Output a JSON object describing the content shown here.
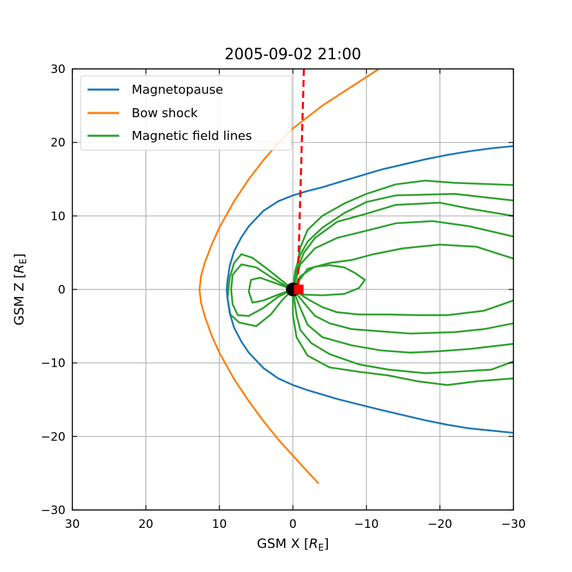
{
  "chart_data": {
    "type": "line",
    "title": "2005-09-02 21:00",
    "xlabel": "GSM X [R_E]",
    "ylabel": "GSM Z [R_E]",
    "xlim": [
      30,
      -30
    ],
    "ylim": [
      -30,
      30
    ],
    "x_ticks": [
      30,
      20,
      10,
      0,
      -10,
      -20,
      -30
    ],
    "y_ticks": [
      -30,
      -20,
      -10,
      0,
      10,
      20,
      30
    ],
    "x_tick_labels": [
      "30",
      "20",
      "10",
      "0",
      "−10",
      "−20",
      "−30"
    ],
    "y_tick_labels": [
      "−30",
      "−20",
      "−10",
      "0",
      "10",
      "20",
      "30"
    ],
    "grid": true,
    "legend_position": "top-left",
    "colors": {
      "magnetopause": "#1f77b4",
      "bow_shock": "#ff7f0e",
      "field_lines": "#2ca02c",
      "spacecraft": "#ff0000",
      "earth": "#000000"
    },
    "series": [
      {
        "name": "Magnetopause",
        "color": "#1f77b4",
        "points": [
          [
            -30,
            19.5
          ],
          [
            -27,
            19.2
          ],
          [
            -24,
            18.8
          ],
          [
            -21,
            18.3
          ],
          [
            -18,
            17.7
          ],
          [
            -15,
            17.0
          ],
          [
            -12,
            16.3
          ],
          [
            -10,
            15.7
          ],
          [
            -8,
            15.1
          ],
          [
            -6,
            14.5
          ],
          [
            -4,
            13.9
          ],
          [
            -2,
            13.4
          ],
          [
            0,
            12.8
          ],
          [
            2,
            12.0
          ],
          [
            4,
            10.7
          ],
          [
            6,
            8.6
          ],
          [
            7,
            7.1
          ],
          [
            8,
            5.2
          ],
          [
            8.6,
            3.2
          ],
          [
            8.9,
            1.2
          ],
          [
            9.0,
            0
          ],
          [
            8.9,
            -1.2
          ],
          [
            8.6,
            -3.2
          ],
          [
            8,
            -5.2
          ],
          [
            7,
            -7.1
          ],
          [
            6,
            -8.6
          ],
          [
            4,
            -10.7
          ],
          [
            2,
            -12.1
          ],
          [
            0,
            -13.0
          ],
          [
            -2,
            -13.7
          ],
          [
            -4,
            -14.3
          ],
          [
            -6,
            -14.9
          ],
          [
            -8,
            -15.4
          ],
          [
            -10,
            -15.9
          ],
          [
            -12,
            -16.4
          ],
          [
            -15,
            -17.1
          ],
          [
            -18,
            -17.8
          ],
          [
            -21,
            -18.4
          ],
          [
            -24,
            -18.9
          ],
          [
            -27,
            -19.2
          ],
          [
            -30,
            -19.5
          ]
        ]
      },
      {
        "name": "Bow shock",
        "color": "#ff7f0e",
        "points": [
          [
            -11.7,
            30
          ],
          [
            -8,
            27.6
          ],
          [
            -4,
            25.0
          ],
          [
            0,
            21.9
          ],
          [
            2,
            19.9
          ],
          [
            4,
            17.6
          ],
          [
            6,
            15.0
          ],
          [
            8,
            12.0
          ],
          [
            10,
            8.4
          ],
          [
            11,
            6.2
          ],
          [
            12,
            3.6
          ],
          [
            12.5,
            1.8
          ],
          [
            12.7,
            0
          ],
          [
            12.5,
            -1.8
          ],
          [
            12,
            -3.6
          ],
          [
            11,
            -6.4
          ],
          [
            10,
            -8.6
          ],
          [
            8,
            -12.2
          ],
          [
            6,
            -15.2
          ],
          [
            4,
            -17.9
          ],
          [
            2,
            -20.4
          ],
          [
            0,
            -22.6
          ],
          [
            -2,
            -24.8
          ],
          [
            -3.5,
            -26.4
          ]
        ]
      },
      {
        "name": "Magnetic field lines",
        "color": "#2ca02c",
        "lines": [
          [
            [
              -30,
              14.2
            ],
            [
              -22,
              14.5
            ],
            [
              -18,
              14.8
            ],
            [
              -14,
              14.3
            ],
            [
              -10,
              13.0
            ],
            [
              -7,
              11.7
            ],
            [
              -4,
              10.0
            ],
            [
              -2,
              8.1
            ],
            [
              -1,
              5.7
            ],
            [
              -0.5,
              2.8
            ],
            [
              0,
              0
            ]
          ],
          [
            [
              -30,
              12.1
            ],
            [
              -22,
              13.0
            ],
            [
              -18,
              12.9
            ],
            [
              -14,
              12.8
            ],
            [
              -10,
              11.9
            ],
            [
              -7,
              10.4
            ],
            [
              -4,
              8.4
            ],
            [
              -2,
              6.5
            ],
            [
              -1,
              4.7
            ],
            [
              -0.3,
              2.5
            ],
            [
              0,
              0
            ]
          ],
          [
            [
              -30,
              10.0
            ],
            [
              -24,
              11.0
            ],
            [
              -20,
              11.8
            ],
            [
              -14,
              11.5
            ],
            [
              -10,
              10.3
            ],
            [
              -6,
              9.2
            ],
            [
              -3,
              7.0
            ],
            [
              -1.5,
              5.0
            ],
            [
              -0.5,
              2.5
            ],
            [
              0,
              0
            ]
          ],
          [
            [
              -30,
              7.2
            ],
            [
              -24,
              8.6
            ],
            [
              -19,
              9.3
            ],
            [
              -14,
              9.0
            ],
            [
              -10,
              8.0
            ],
            [
              -6,
              7.0
            ],
            [
              -3,
              5.6
            ],
            [
              -1,
              3.4
            ],
            [
              0,
              0
            ]
          ],
          [
            [
              -30,
              4.2
            ],
            [
              -25,
              5.8
            ],
            [
              -20,
              6.1
            ],
            [
              -15,
              5.6
            ],
            [
              -11,
              4.8
            ],
            [
              -8,
              4.0
            ],
            [
              -5,
              3.6
            ],
            [
              -2,
              2.8
            ],
            [
              0,
              0
            ]
          ],
          [
            [
              0,
              0
            ],
            [
              -1,
              1.8
            ],
            [
              -3,
              3.1
            ],
            [
              -5,
              3.3
            ],
            [
              -7,
              3.0
            ],
            [
              -8.5,
              2.2
            ],
            [
              -9.8,
              1.3
            ],
            [
              -9,
              0.2
            ],
            [
              -7,
              -0.6
            ],
            [
              -4,
              -0.8
            ],
            [
              -1.5,
              -0.7
            ],
            [
              0,
              0
            ]
          ],
          [
            [
              0,
              0
            ],
            [
              -2,
              -1.3
            ],
            [
              -4,
              -2.4
            ],
            [
              -6,
              -3.1
            ],
            [
              -9,
              -3.4
            ],
            [
              -13,
              -3.4
            ],
            [
              -17,
              -3.5
            ],
            [
              -21,
              -3.5
            ],
            [
              -26,
              -2.9
            ],
            [
              -30,
              -1.5
            ]
          ],
          [
            [
              0,
              0
            ],
            [
              -1.5,
              -1.8
            ],
            [
              -3,
              -3.6
            ],
            [
              -5,
              -4.6
            ],
            [
              -8,
              -5.4
            ],
            [
              -12,
              -5.7
            ],
            [
              -16,
              -6.0
            ],
            [
              -22,
              -5.8
            ],
            [
              -26,
              -5.4
            ],
            [
              -30,
              -4.6
            ]
          ],
          [
            [
              0,
              0
            ],
            [
              -1,
              -2.5
            ],
            [
              -2,
              -4.8
            ],
            [
              -4,
              -6.5
            ],
            [
              -8,
              -7.6
            ],
            [
              -12,
              -8.3
            ],
            [
              -16,
              -8.6
            ],
            [
              -20,
              -8.4
            ],
            [
              -24,
              -8.1
            ],
            [
              -30,
              -7.4
            ]
          ],
          [
            [
              0,
              0
            ],
            [
              -0.5,
              -3.5
            ],
            [
              -1,
              -5.5
            ],
            [
              -2.5,
              -7.3
            ],
            [
              -5,
              -8.8
            ],
            [
              -9,
              -10.2
            ],
            [
              -13,
              -10.9
            ],
            [
              -18,
              -11.4
            ],
            [
              -22,
              -11.2
            ],
            [
              -27,
              -10.9
            ],
            [
              -30,
              -9.8
            ]
          ],
          [
            [
              0,
              0
            ],
            [
              0,
              -3.5
            ],
            [
              -0.5,
              -6.5
            ],
            [
              -2,
              -9.0
            ],
            [
              -5,
              -10.6
            ],
            [
              -9,
              -11.2
            ],
            [
              -13,
              -11.7
            ],
            [
              -17,
              -12.5
            ],
            [
              -21,
              -13.0
            ],
            [
              -25,
              -12.5
            ],
            [
              -30,
              -12.1
            ]
          ],
          [
            [
              0,
              0
            ],
            [
              1.5,
              -1.5
            ],
            [
              3,
              -3.4
            ],
            [
              5,
              -5.0
            ],
            [
              7.3,
              -4.5
            ],
            [
              8.5,
              -3.4
            ],
            [
              8.9,
              -1.2
            ],
            [
              8.6,
              1.6
            ],
            [
              8,
              3.6
            ],
            [
              7,
              4.8
            ],
            [
              5.5,
              4.3
            ],
            [
              3.5,
              2.8
            ],
            [
              1.5,
              1.2
            ],
            [
              0,
              0
            ]
          ],
          [
            [
              0,
              0
            ],
            [
              2,
              -1.0
            ],
            [
              4,
              -2.5
            ],
            [
              6,
              -3.6
            ],
            [
              7.5,
              -3.5
            ],
            [
              8.2,
              -2.0
            ],
            [
              8.4,
              0
            ],
            [
              8.2,
              2.0
            ],
            [
              7,
              3.4
            ],
            [
              5,
              3.0
            ],
            [
              3,
              1.7
            ],
            [
              1,
              0.5
            ],
            [
              0,
              0
            ]
          ],
          [
            [
              0,
              0
            ],
            [
              2,
              -0.7
            ],
            [
              4,
              -1.5
            ],
            [
              5.5,
              -1.8
            ],
            [
              6,
              -0.3
            ],
            [
              5.7,
              1.3
            ],
            [
              4.5,
              1.6
            ],
            [
              2.5,
              0.9
            ],
            [
              0,
              0
            ]
          ]
        ]
      }
    ],
    "spacecraft_track": {
      "color": "#ff0000",
      "points": [
        [
          -1.5,
          30
        ],
        [
          -0.7,
          2.0
        ],
        [
          -0.8,
          0
        ]
      ]
    },
    "earth": {
      "x": 0,
      "z": 0
    },
    "spacecraft_marker": {
      "x": -0.8,
      "z": 0
    }
  }
}
